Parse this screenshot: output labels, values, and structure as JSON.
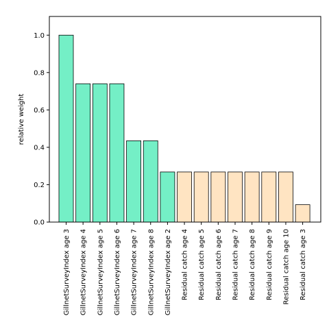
{
  "chart_data": {
    "type": "bar",
    "title": "",
    "xlabel": "",
    "ylabel": "relative weight",
    "ylim": [
      0,
      1.1
    ],
    "yticks": [
      0.0,
      0.2,
      0.4,
      0.6,
      0.8,
      1.0
    ],
    "ytick_labels": [
      "0.0",
      "0.2",
      "0.4",
      "0.6",
      "0.8",
      "1.0"
    ],
    "grid": false,
    "categories": [
      "GillnetSurveyIndex age 3",
      "GillnetSurveyIndex age 4",
      "GillnetSurveyIndex age 5",
      "GillnetSurveyIndex age 6",
      "GillnetSurveyIndex age 7",
      "GillnetSurveyIndex age 8",
      "GillnetSurveyIndex age 2",
      "Residual catch age 4",
      "Residual catch age 5",
      "Residual catch age 6",
      "Residual catch age 7",
      "Residual catch age 8",
      "Residual catch age 9",
      "Residual catch age 10",
      "Residual catch age 3"
    ],
    "values": [
      1.0,
      0.74,
      0.74,
      0.74,
      0.435,
      0.435,
      0.268,
      0.268,
      0.268,
      0.268,
      0.268,
      0.268,
      0.268,
      0.268,
      0.093
    ],
    "bar_colors": [
      "#74EFC6",
      "#74EFC6",
      "#74EFC6",
      "#74EFC6",
      "#74EFC6",
      "#74EFC6",
      "#74EFC6",
      "#FFE4C2",
      "#FFE4C2",
      "#FFE4C2",
      "#FFE4C2",
      "#FFE4C2",
      "#FFE4C2",
      "#FFE4C2",
      "#FFE4C2"
    ],
    "edge_color": "#000000"
  }
}
